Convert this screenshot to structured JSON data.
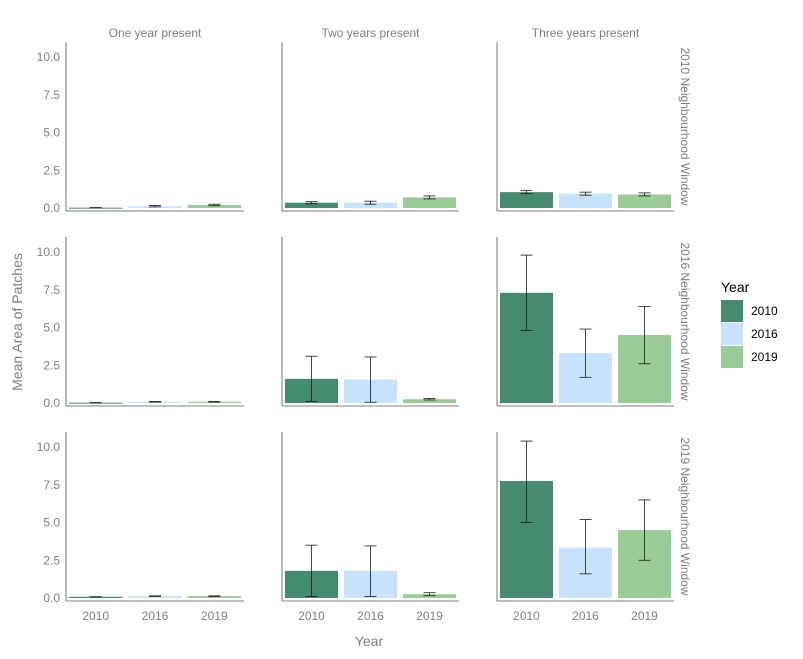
{
  "chart_data": {
    "type": "bar",
    "xlabel": "Year",
    "ylabel": "Mean Area of Patches",
    "ylim": [
      -0.2,
      11
    ],
    "yticks": [
      "0.0",
      "2.5",
      "5.0",
      "7.5",
      "10.0"
    ],
    "ytick_values": [
      0,
      2.5,
      5,
      7.5,
      10
    ],
    "categories": [
      "2010",
      "2016",
      "2019"
    ],
    "columns": [
      "One year present",
      "Two years present",
      "Three years present"
    ],
    "rows": [
      "2010 Neighbourhood Window",
      "2016 Neighbourhood Window",
      "2019 Neighbourhood Window"
    ],
    "grid": false,
    "legend": {
      "title": "Year",
      "position": "right",
      "entries": [
        {
          "label": "2010",
          "color": "#448B70"
        },
        {
          "label": "2016",
          "color": "#C6E2FF"
        },
        {
          "label": "2019",
          "color": "#9ACD95"
        }
      ]
    },
    "panels": [
      {
        "row": 0,
        "col": 0,
        "values": [
          0.02,
          0.12,
          0.2
        ],
        "err_low": [
          0.02,
          0.07,
          0.15
        ],
        "err_high": [
          0.02,
          0.17,
          0.25
        ]
      },
      {
        "row": 0,
        "col": 1,
        "values": [
          0.35,
          0.35,
          0.7
        ],
        "err_low": [
          0.28,
          0.25,
          0.6
        ],
        "err_high": [
          0.42,
          0.45,
          0.8
        ]
      },
      {
        "row": 0,
        "col": 2,
        "values": [
          1.05,
          0.95,
          0.9
        ],
        "err_low": [
          0.95,
          0.85,
          0.8
        ],
        "err_high": [
          1.15,
          1.05,
          1.0
        ]
      },
      {
        "row": 1,
        "col": 0,
        "values": [
          0.02,
          0.08,
          0.08
        ],
        "err_low": [
          0.02,
          0.06,
          0.06
        ],
        "err_high": [
          0.02,
          0.1,
          0.1
        ]
      },
      {
        "row": 1,
        "col": 1,
        "values": [
          1.6,
          1.55,
          0.25
        ],
        "err_low": [
          0.1,
          0.05,
          0.2
        ],
        "err_high": [
          3.1,
          3.05,
          0.3
        ]
      },
      {
        "row": 1,
        "col": 2,
        "values": [
          7.3,
          3.3,
          4.5
        ],
        "err_low": [
          4.8,
          1.7,
          2.6
        ],
        "err_high": [
          9.8,
          4.9,
          6.4
        ]
      },
      {
        "row": 2,
        "col": 0,
        "values": [
          0.08,
          0.12,
          0.12
        ],
        "err_low": [
          0.08,
          0.1,
          0.1
        ],
        "err_high": [
          0.08,
          0.14,
          0.14
        ]
      },
      {
        "row": 2,
        "col": 1,
        "values": [
          1.8,
          1.8,
          0.25
        ],
        "err_low": [
          0.1,
          0.1,
          0.15
        ],
        "err_high": [
          3.5,
          3.45,
          0.35
        ]
      },
      {
        "row": 2,
        "col": 2,
        "values": [
          7.75,
          3.35,
          4.5
        ],
        "err_low": [
          5.0,
          1.6,
          2.5
        ],
        "err_high": [
          10.4,
          5.2,
          6.5
        ]
      }
    ]
  }
}
